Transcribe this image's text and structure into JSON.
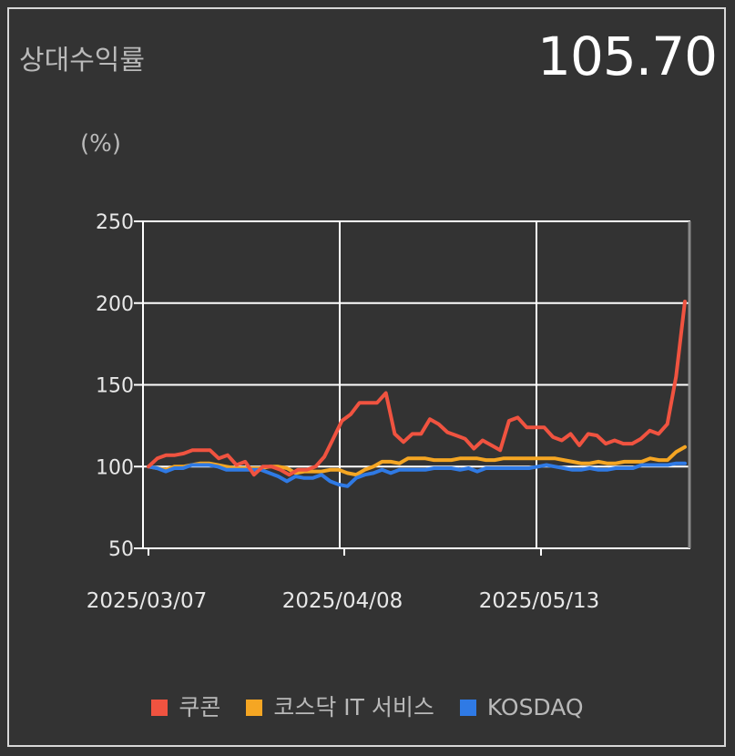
{
  "header": {
    "title": "상대수익률",
    "value": "105.70"
  },
  "chart_data": {
    "type": "line",
    "unit_label": "(%)",
    "ylim": [
      50,
      250
    ],
    "y_ticks": [
      "250",
      "200",
      "150",
      "100",
      "50"
    ],
    "x_ticks": [
      "2025/03/07",
      "2025/04/08",
      "2025/05/13"
    ],
    "grid": true,
    "legend_position": "bottom",
    "series": [
      {
        "name": "쿠콘",
        "color": "#f05340",
        "values": [
          100,
          105,
          107,
          107,
          108,
          110,
          110,
          110,
          105,
          107,
          101,
          103,
          95,
          100,
          100,
          98,
          95,
          98,
          98,
          100,
          106,
          117,
          128,
          132,
          139,
          139,
          139,
          145,
          120,
          115,
          120,
          120,
          129,
          126,
          121,
          119,
          117,
          111,
          116,
          113,
          110,
          128,
          130,
          124,
          124,
          124,
          118,
          116,
          120,
          113,
          120,
          119,
          114,
          116,
          114,
          114,
          117,
          122,
          120,
          126,
          155,
          201
        ]
      },
      {
        "name": "코스닥 IT 서비스",
        "color": "#f5a623",
        "values": [
          100,
          99,
          98,
          100,
          100,
          101,
          102,
          102,
          101,
          100,
          99,
          99,
          99,
          99,
          100,
          100,
          99,
          96,
          97,
          97,
          97,
          98,
          98,
          96,
          95,
          98,
          100,
          103,
          103,
          102,
          105,
          105,
          105,
          104,
          104,
          104,
          105,
          105,
          105,
          104,
          104,
          105,
          105,
          105,
          105,
          105,
          105,
          105,
          104,
          103,
          102,
          102,
          103,
          102,
          102,
          103,
          103,
          103,
          105,
          104,
          104,
          109,
          112
        ]
      },
      {
        "name": "KOSDAQ",
        "color": "#2f7ae5",
        "values": [
          100,
          99,
          97,
          99,
          99,
          101,
          101,
          101,
          100,
          98,
          98,
          98,
          98,
          98,
          96,
          94,
          91,
          94,
          93,
          93,
          95,
          91,
          89,
          88,
          93,
          95,
          96,
          98,
          96,
          98,
          98,
          98,
          98,
          99,
          99,
          99,
          98,
          99,
          97,
          99,
          99,
          99,
          99,
          99,
          99,
          100,
          101,
          100,
          99,
          98,
          98,
          99,
          98,
          98,
          99,
          99,
          99,
          101,
          101,
          101,
          101,
          102,
          102
        ]
      }
    ]
  }
}
